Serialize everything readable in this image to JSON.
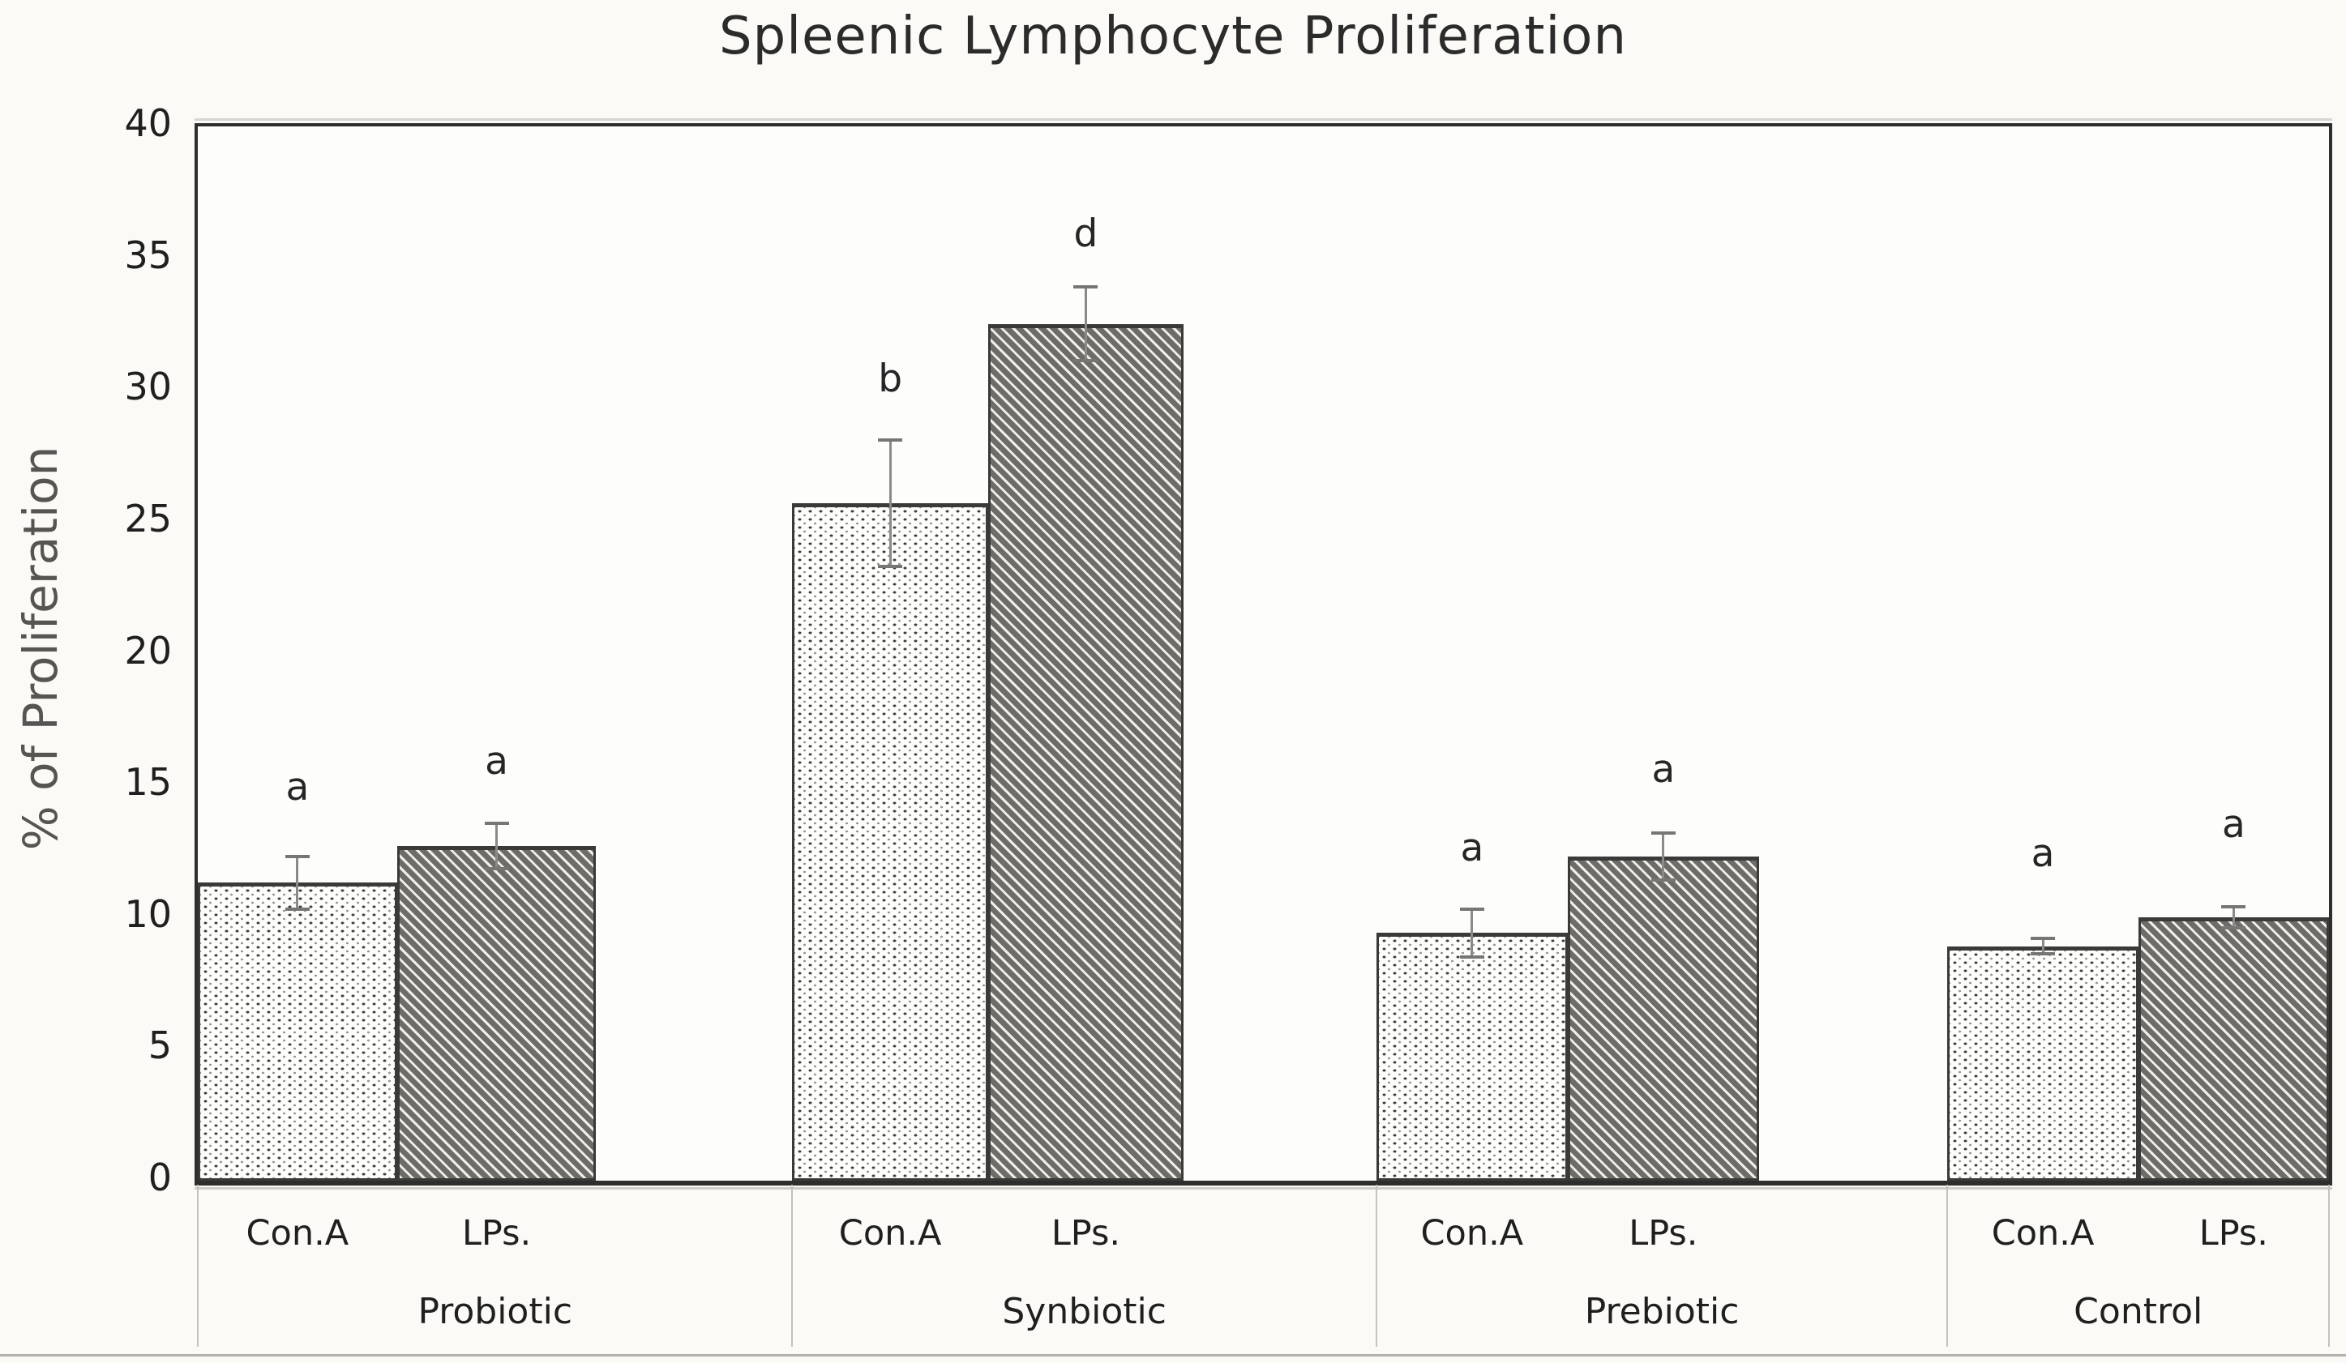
{
  "chart_data": {
    "type": "bar",
    "title": "Spleenic Lymphocyte Proliferation",
    "ylabel": "% of Proliferation",
    "xlabel": "",
    "ylim": [
      0,
      40
    ],
    "yticks": [
      0,
      5,
      10,
      15,
      20,
      25,
      30,
      35,
      40
    ],
    "grid": false,
    "legend_position": "none",
    "categories": [
      "Probiotic",
      "Synbiotic",
      "Prebiotic",
      "Control"
    ],
    "sub_categories": [
      "Con.A",
      "LPs."
    ],
    "series": [
      {
        "name": "Con.A",
        "pattern": "dots",
        "values": [
          11.3,
          25.7,
          9.4,
          8.9
        ],
        "errors": [
          1.0,
          2.4,
          0.9,
          0.3
        ],
        "sig_letters": [
          "a",
          "b",
          "a",
          "a"
        ],
        "letter_y": [
          14.9,
          30.4,
          12.6,
          12.4
        ]
      },
      {
        "name": "LPs.",
        "pattern": "diagonal-hatch",
        "values": [
          12.7,
          32.5,
          12.3,
          10.0
        ],
        "errors": [
          0.85,
          1.4,
          0.9,
          0.4
        ],
        "sig_letters": [
          "a",
          "d",
          "a",
          "a"
        ],
        "letter_y": [
          15.9,
          35.9,
          15.6,
          13.5
        ]
      }
    ],
    "layout": {
      "section_bounds_frac": [
        0,
        0.279,
        0.553,
        0.821,
        1
      ],
      "bar_width_frac": [
        0.335,
        0.335,
        0.335,
        0.5
      ]
    },
    "colors": {
      "text": "#262626",
      "axis_border": "#2e2e2e",
      "bar_outline": "#3a3a38",
      "hatch_dark": "#6e6c69",
      "hatch_light": "#f1eee8",
      "dot": "#3f3f3d",
      "error_bar": "#8c8a87",
      "divider": "#c4c2bd",
      "ylabel_text": "#575452",
      "background": "#fbfaf7",
      "plot_background": "#fdfdfb"
    }
  }
}
